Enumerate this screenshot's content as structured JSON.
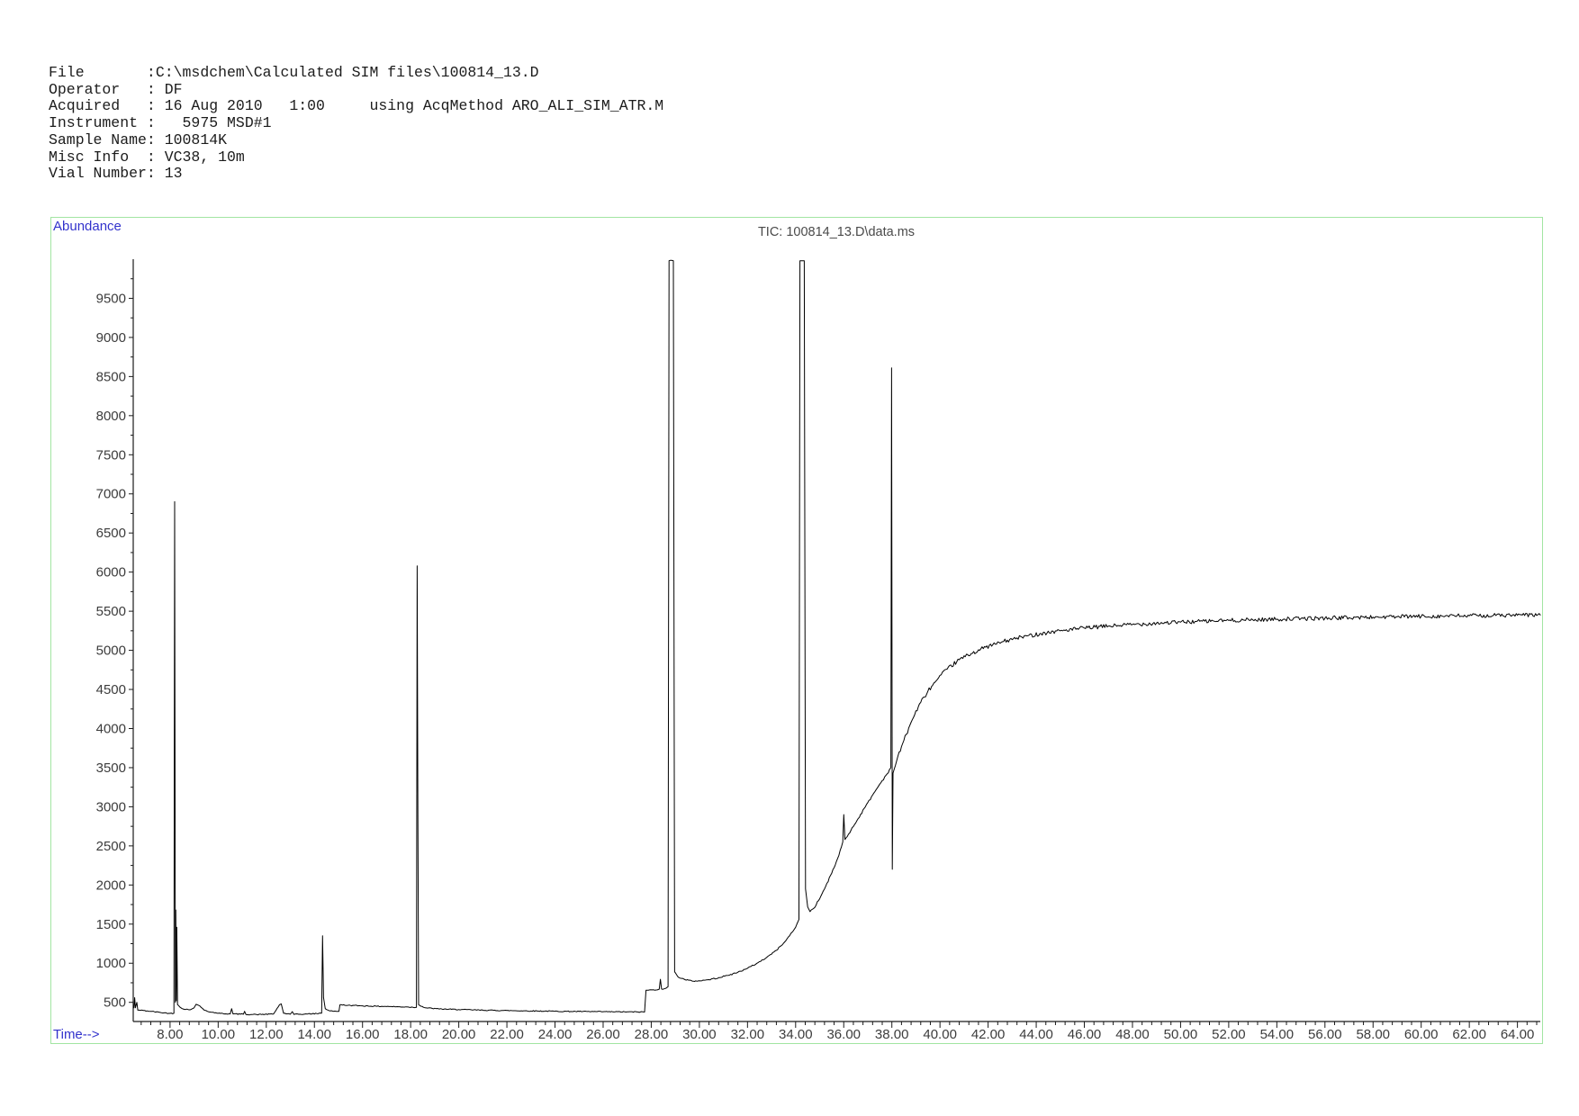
{
  "header": {
    "lines": [
      "File       :C:\\msdchem\\Calculated SIM files\\100814_13.D",
      "Operator   : DF",
      "Acquired   : 16 Aug 2010   1:00     using AcqMethod ARO_ALI_SIM_ATR.M",
      "Instrument :   5975 MSD#1",
      "Sample Name: 100814K",
      "Misc Info  : VC38, 10m",
      "Vial Number: 13"
    ]
  },
  "chart_data": {
    "type": "line",
    "title": "TIC: 100814_13.D\\data.ms",
    "xlabel": "Time-->",
    "ylabel": "Abundance",
    "grid": false,
    "legend": false,
    "x_axis": {
      "min": 6.47,
      "max": 64.95,
      "major_step": 2.0,
      "minor_step": 0.4,
      "first_major": 8.0,
      "last_major": 64.0
    },
    "y_axis": {
      "min": 255,
      "max": 10000,
      "major_step": 500,
      "minor_step": 250,
      "first_major": 500,
      "last_major": 9500
    },
    "colors": {
      "trace": "#000000",
      "axis": "#1a1a1a",
      "tick_text": "#3c3c3c",
      "title_text": "#4a4a4a",
      "accent_blue": "#3232cc",
      "panel_border": "#a2e5a2"
    },
    "clip_value": 9980,
    "peaks": [
      {
        "rt": 8.2,
        "abundance": 6900,
        "clipped": false
      },
      {
        "rt": 14.3,
        "abundance": 1350,
        "clipped": false
      },
      {
        "rt": 18.3,
        "abundance": 6080,
        "clipped": false
      },
      {
        "rt": 28.9,
        "abundance": 10000,
        "clipped": true
      },
      {
        "rt": 34.3,
        "abundance": 10000,
        "clipped": true
      },
      {
        "rt": 36.0,
        "abundance": 2900,
        "clipped": false
      },
      {
        "rt": 38.0,
        "abundance": 8610,
        "clipped": false
      }
    ],
    "trace_anchors": [
      [
        6.5,
        430
      ],
      [
        6.53,
        560
      ],
      [
        6.56,
        430
      ],
      [
        6.62,
        500
      ],
      [
        6.66,
        400
      ],
      [
        6.9,
        395
      ],
      [
        7.2,
        385
      ],
      [
        7.6,
        370
      ],
      [
        8.0,
        358
      ],
      [
        8.16,
        360
      ],
      [
        8.19,
        6900
      ],
      [
        8.22,
        500
      ],
      [
        8.24,
        1680
      ],
      [
        8.26,
        520
      ],
      [
        8.28,
        1460
      ],
      [
        8.31,
        470
      ],
      [
        8.5,
        420
      ],
      [
        8.8,
        405
      ],
      [
        9.0,
        430
      ],
      [
        9.08,
        475
      ],
      [
        9.2,
        460
      ],
      [
        9.4,
        405
      ],
      [
        9.7,
        375
      ],
      [
        10.1,
        358
      ],
      [
        10.5,
        352
      ],
      [
        10.56,
        420
      ],
      [
        10.62,
        352
      ],
      [
        11.05,
        348
      ],
      [
        11.1,
        385
      ],
      [
        11.15,
        346
      ],
      [
        11.6,
        344
      ],
      [
        12.3,
        350
      ],
      [
        12.55,
        470
      ],
      [
        12.62,
        480
      ],
      [
        12.72,
        360
      ],
      [
        13.0,
        348
      ],
      [
        13.08,
        382
      ],
      [
        13.15,
        346
      ],
      [
        13.6,
        350
      ],
      [
        14.1,
        356
      ],
      [
        14.3,
        362
      ],
      [
        14.34,
        1350
      ],
      [
        14.38,
        560
      ],
      [
        14.45,
        420
      ],
      [
        14.6,
        395
      ],
      [
        14.9,
        385
      ],
      [
        15.02,
        385
      ],
      [
        15.06,
        468
      ],
      [
        15.4,
        462
      ],
      [
        16.0,
        455
      ],
      [
        16.6,
        450
      ],
      [
        17.2,
        446
      ],
      [
        17.9,
        440
      ],
      [
        18.24,
        436
      ],
      [
        18.27,
        6080
      ],
      [
        18.3,
        2900
      ],
      [
        18.33,
        470
      ],
      [
        18.6,
        430
      ],
      [
        19.2,
        415
      ],
      [
        20.0,
        408
      ],
      [
        21.0,
        400
      ],
      [
        22.0,
        395
      ],
      [
        23.0,
        390
      ],
      [
        24.0,
        386
      ],
      [
        25.0,
        383
      ],
      [
        26.0,
        380
      ],
      [
        27.0,
        378
      ],
      [
        27.72,
        376
      ],
      [
        27.78,
        655
      ],
      [
        28.1,
        660
      ],
      [
        28.33,
        668
      ],
      [
        28.38,
        795
      ],
      [
        28.43,
        670
      ],
      [
        28.6,
        678
      ],
      [
        28.7,
        700
      ],
      [
        28.74,
        9980
      ],
      [
        28.92,
        9980
      ],
      [
        28.97,
        890
      ],
      [
        29.1,
        830
      ],
      [
        29.4,
        790
      ],
      [
        29.7,
        772
      ],
      [
        30.0,
        775
      ],
      [
        30.4,
        790
      ],
      [
        30.8,
        815
      ],
      [
        31.2,
        845
      ],
      [
        31.6,
        885
      ],
      [
        32.0,
        935
      ],
      [
        32.4,
        1000
      ],
      [
        32.8,
        1075
      ],
      [
        33.2,
        1165
      ],
      [
        33.6,
        1290
      ],
      [
        34.0,
        1460
      ],
      [
        34.14,
        1560
      ],
      [
        34.18,
        9980
      ],
      [
        34.36,
        9980
      ],
      [
        34.41,
        1950
      ],
      [
        34.5,
        1720
      ],
      [
        34.6,
        1660
      ],
      [
        34.75,
        1700
      ],
      [
        34.95,
        1800
      ],
      [
        35.2,
        1950
      ],
      [
        35.5,
        2150
      ],
      [
        35.8,
        2380
      ],
      [
        35.96,
        2550
      ],
      [
        36.0,
        2900
      ],
      [
        36.05,
        2580
      ],
      [
        36.3,
        2700
      ],
      [
        36.6,
        2850
      ],
      [
        36.9,
        3000
      ],
      [
        37.2,
        3150
      ],
      [
        37.5,
        3290
      ],
      [
        37.8,
        3420
      ],
      [
        37.96,
        3500
      ],
      [
        37.99,
        8610
      ],
      [
        38.02,
        2200
      ],
      [
        38.05,
        3430
      ],
      [
        38.2,
        3590
      ],
      [
        38.5,
        3850
      ],
      [
        38.8,
        4080
      ],
      [
        39.1,
        4280
      ],
      [
        39.5,
        4480
      ],
      [
        39.9,
        4630
      ],
      [
        40.3,
        4760
      ],
      [
        40.8,
        4880
      ],
      [
        41.3,
        4960
      ],
      [
        41.9,
        5040
      ],
      [
        42.6,
        5110
      ],
      [
        43.4,
        5170
      ],
      [
        44.2,
        5215
      ],
      [
        45.0,
        5250
      ],
      [
        46.0,
        5285
      ],
      [
        47.0,
        5310
      ],
      [
        48.0,
        5330
      ],
      [
        49.0,
        5348
      ],
      [
        50.0,
        5360
      ],
      [
        51.0,
        5372
      ],
      [
        52.0,
        5382
      ],
      [
        53.0,
        5390
      ],
      [
        54.0,
        5398
      ],
      [
        55.0,
        5405
      ],
      [
        56.0,
        5412
      ],
      [
        57.0,
        5418
      ],
      [
        58.0,
        5424
      ],
      [
        59.0,
        5429
      ],
      [
        60.0,
        5434
      ],
      [
        61.0,
        5438
      ],
      [
        62.0,
        5442
      ],
      [
        63.0,
        5446
      ],
      [
        64.0,
        5449
      ],
      [
        64.95,
        5452
      ]
    ],
    "noise_zones": [
      {
        "t0": 6.5,
        "t1": 27.7,
        "amp": 6
      },
      {
        "t0": 27.8,
        "t1": 34.1,
        "amp": 8
      },
      {
        "t0": 34.45,
        "t1": 37.9,
        "amp": 12
      },
      {
        "t0": 38.1,
        "t1": 64.95,
        "amp": 26
      }
    ]
  }
}
